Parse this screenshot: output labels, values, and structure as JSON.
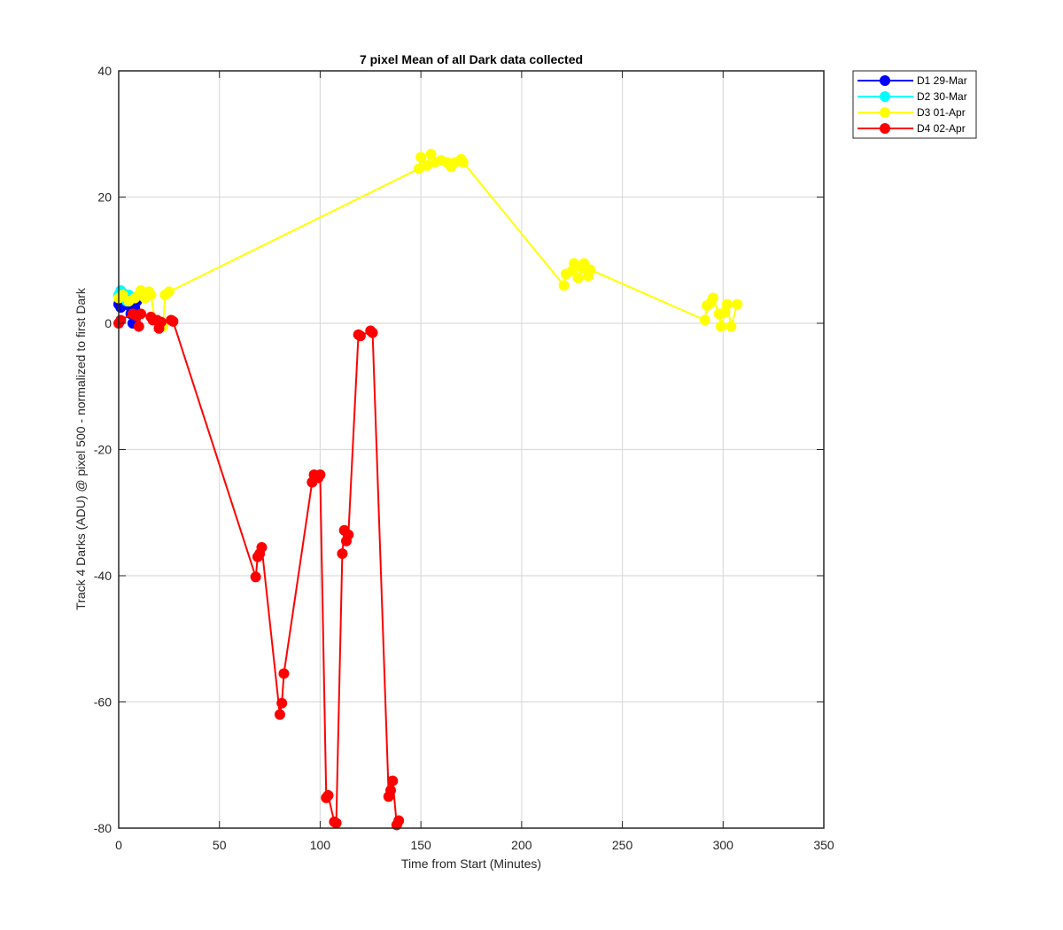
{
  "chart_data": {
    "type": "line",
    "title": "7 pixel Mean of all Dark data collected",
    "xlabel": "Time from Start (Minutes)",
    "ylabel": "Track 4 Darks (ADU) @ pixel 500 - normalized to first Dark",
    "xlim": [
      0,
      350
    ],
    "ylim": [
      -80,
      40
    ],
    "xticks": [
      0,
      50,
      100,
      150,
      200,
      250,
      300,
      350
    ],
    "yticks": [
      -80,
      -60,
      -40,
      -20,
      0,
      20,
      40
    ],
    "xtick_labels": [
      "0",
      "50",
      "100",
      "150",
      "200",
      "250",
      "300",
      "350"
    ],
    "ytick_labels": [
      "-80",
      "-60",
      "-40",
      "-20",
      "0",
      "20",
      "40"
    ],
    "grid": true,
    "legend_position": "outside-top-right",
    "series": [
      {
        "name": "D1 29-Mar",
        "color": "#0000ff",
        "x": [
          0,
          1,
          2,
          3,
          4,
          5,
          6,
          7,
          8,
          9
        ],
        "y": [
          3,
          2.5,
          4,
          3.5,
          3,
          2.8,
          1.5,
          0,
          2.5,
          3.5
        ]
      },
      {
        "name": "D2 30-Mar",
        "color": "#00ffff",
        "x": [
          0,
          1,
          2,
          3,
          4,
          5
        ],
        "y": [
          4.5,
          5.2,
          4.8,
          4,
          3.5,
          4.5
        ]
      },
      {
        "name": "D3 01-Apr",
        "color": "#ffff00",
        "x": [
          0,
          2,
          5,
          8,
          10,
          11,
          13,
          15,
          16,
          18,
          20,
          22,
          23,
          25,
          149,
          150,
          153,
          155,
          157,
          160,
          163,
          165,
          167,
          170,
          171,
          221,
          222,
          225,
          226,
          228,
          230,
          231,
          233,
          234,
          291,
          292,
          294,
          295,
          298,
          299,
          301,
          302,
          304,
          307
        ],
        "y": [
          4,
          4.5,
          3.5,
          4,
          4.5,
          5.2,
          4,
          5,
          4.5,
          0.5,
          0,
          -0.5,
          4.5,
          5,
          24.5,
          26.3,
          25,
          26.8,
          25.5,
          25.8,
          25.5,
          24.8,
          25.5,
          26,
          25.5,
          6,
          7.8,
          8.3,
          9.5,
          7.2,
          8.8,
          9.5,
          7.5,
          8.5,
          0.5,
          2.8,
          3.3,
          4,
          1.5,
          -0.5,
          1.8,
          3,
          -0.5,
          3
        ]
      },
      {
        "name": "D4 02-Apr",
        "color": "#ff0000",
        "x": [
          0,
          1,
          7,
          9,
          10,
          11,
          16,
          17,
          19,
          20,
          21,
          26,
          27,
          68,
          69,
          70,
          71,
          80,
          81,
          82,
          96,
          97,
          99,
          100,
          103,
          104,
          107,
          108,
          111,
          112,
          113,
          114,
          119,
          120,
          125,
          126,
          134,
          135,
          136,
          138,
          139
        ],
        "y": [
          0,
          0.5,
          1.5,
          1.2,
          -0.5,
          1.5,
          1,
          0.5,
          0.5,
          -0.8,
          0.2,
          0.5,
          0.3,
          -40.2,
          -37,
          -36.5,
          -35.5,
          -62,
          -60.2,
          -55.5,
          -25.2,
          -24,
          -24.5,
          -24,
          -75.2,
          -74.8,
          -79,
          -79.2,
          -36.5,
          -32.8,
          -34.5,
          -33.5,
          -1.8,
          -2,
          -1.2,
          -1.5,
          -75,
          -74,
          -72.5,
          -79.5,
          -78.8
        ]
      }
    ]
  }
}
